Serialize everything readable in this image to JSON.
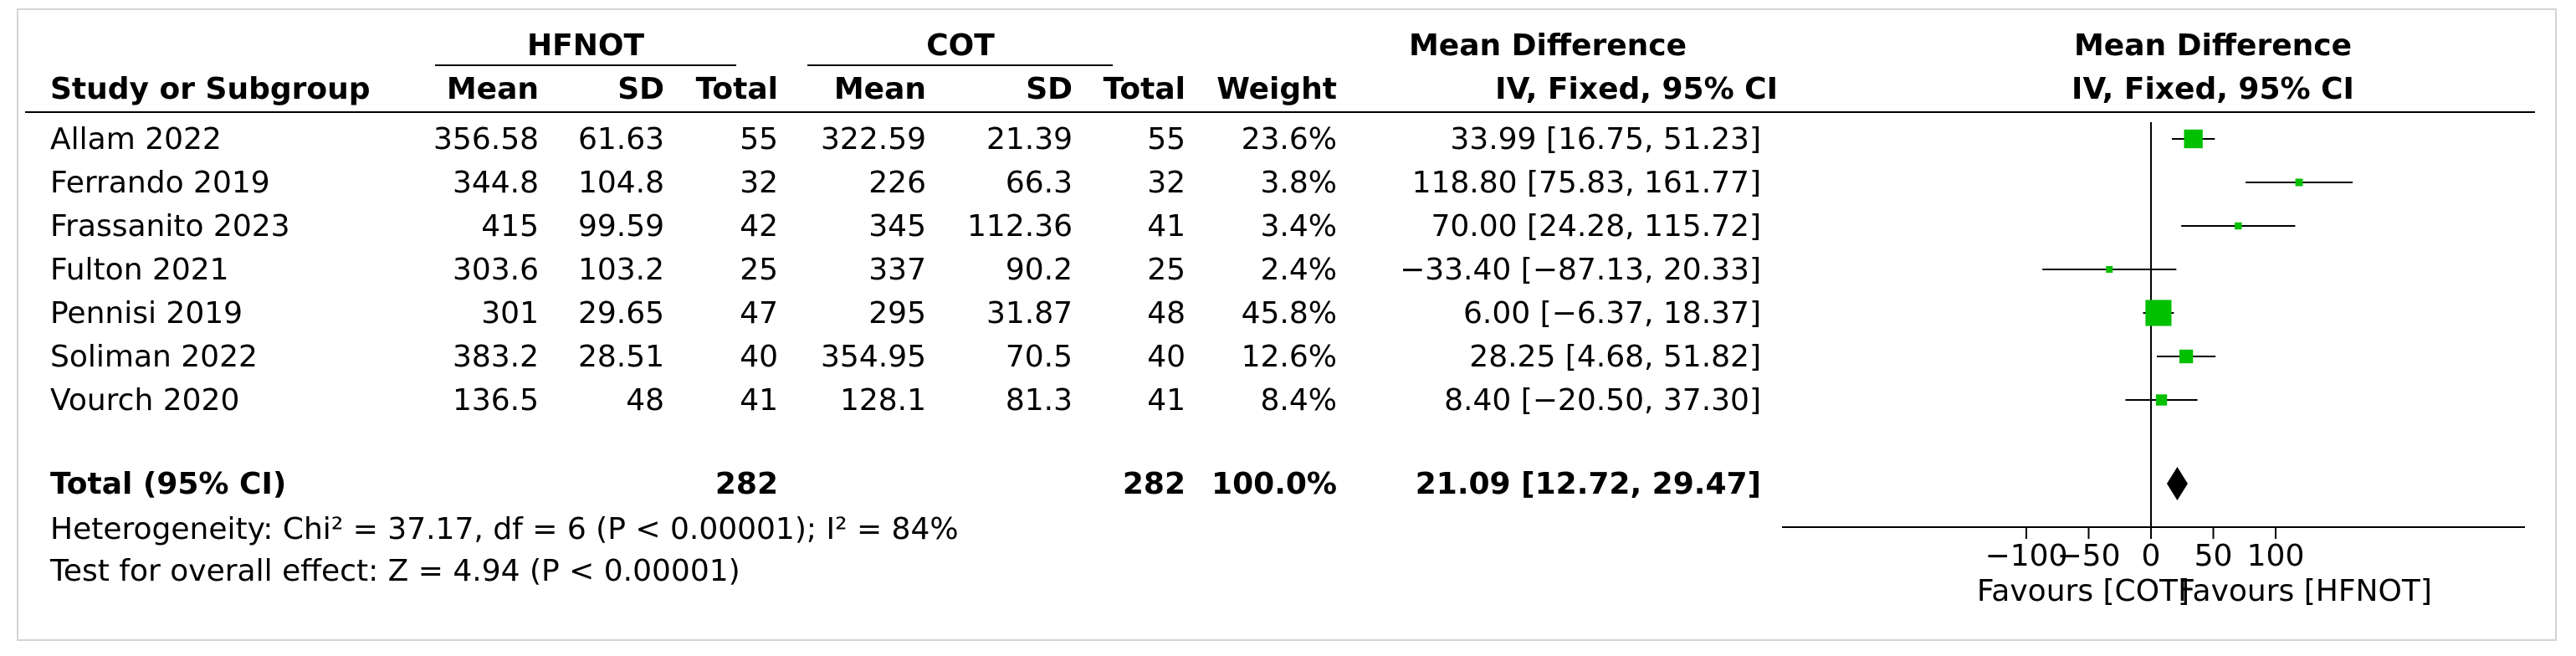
{
  "header": {
    "group1": "HFNOT",
    "group2": "COT",
    "effect_title": "Mean Difference",
    "effect_subtitle": "IV, Fixed, 95% CI",
    "plot_title": "Mean Difference",
    "plot_subtitle": "IV, Fixed, 95% CI",
    "study_col": "Study or Subgroup",
    "mean": "Mean",
    "sd": "SD",
    "total": "Total",
    "weight": "Weight"
  },
  "total_row": {
    "label": "Total (95% CI)",
    "total1": "282",
    "total2": "282",
    "weight": "100.0%",
    "ci_text": "21.09 [12.72, 29.47]"
  },
  "footer": {
    "heterogeneity": "Heterogeneity: Chi² = 37.17, df = 6 (P < 0.00001); I² = 84%",
    "overall_effect": "Test for overall effect: Z = 4.94 (P < 0.00001)"
  },
  "colors": {
    "marker": "#00c000",
    "diamond": "#000000",
    "line": "#000000"
  },
  "chart_data": {
    "type": "forest",
    "x_ticks": [
      -100,
      -50,
      0,
      50,
      100
    ],
    "xlim": [
      -150,
      150
    ],
    "favours_left": "Favours [COT]",
    "favours_right": "Favours [HFNOT]",
    "studies": [
      {
        "name": "Allam 2022",
        "mean1": "356.58",
        "sd1": "61.63",
        "n1": "55",
        "mean2": "322.59",
        "sd2": "21.39",
        "n2": "55",
        "weight_text": "23.6%",
        "ci_text": "33.99 [16.75, 51.23]",
        "md": 33.99,
        "lo": 16.75,
        "hi": 51.23,
        "weight": 23.6
      },
      {
        "name": "Ferrando 2019",
        "mean1": "344.8",
        "sd1": "104.8",
        "n1": "32",
        "mean2": "226",
        "sd2": "66.3",
        "n2": "32",
        "weight_text": "3.8%",
        "ci_text": "118.80 [75.83, 161.77]",
        "md": 118.8,
        "lo": 75.83,
        "hi": 161.77,
        "weight": 3.8
      },
      {
        "name": "Frassanito 2023",
        "mean1": "415",
        "sd1": "99.59",
        "n1": "42",
        "mean2": "345",
        "sd2": "112.36",
        "n2": "41",
        "weight_text": "3.4%",
        "ci_text": "70.00 [24.28, 115.72]",
        "md": 70.0,
        "lo": 24.28,
        "hi": 115.72,
        "weight": 3.4
      },
      {
        "name": "Fulton 2021",
        "mean1": "303.6",
        "sd1": "103.2",
        "n1": "25",
        "mean2": "337",
        "sd2": "90.2",
        "n2": "25",
        "weight_text": "2.4%",
        "ci_text": "−33.40 [−87.13, 20.33]",
        "md": -33.4,
        "lo": -87.13,
        "hi": 20.33,
        "weight": 2.4
      },
      {
        "name": "Pennisi 2019",
        "mean1": "301",
        "sd1": "29.65",
        "n1": "47",
        "mean2": "295",
        "sd2": "31.87",
        "n2": "48",
        "weight_text": "45.8%",
        "ci_text": "6.00 [−6.37, 18.37]",
        "md": 6.0,
        "lo": -6.37,
        "hi": 18.37,
        "weight": 45.8
      },
      {
        "name": "Soliman 2022",
        "mean1": "383.2",
        "sd1": "28.51",
        "n1": "40",
        "mean2": "354.95",
        "sd2": "70.5",
        "n2": "40",
        "weight_text": "12.6%",
        "ci_text": "28.25 [4.68, 51.82]",
        "md": 28.25,
        "lo": 4.68,
        "hi": 51.82,
        "weight": 12.6
      },
      {
        "name": "Vourch 2020",
        "mean1": "136.5",
        "sd1": "48",
        "n1": "41",
        "mean2": "128.1",
        "sd2": "81.3",
        "n2": "41",
        "weight_text": "8.4%",
        "ci_text": "8.40 [−20.50, 37.30]",
        "md": 8.4,
        "lo": -20.5,
        "hi": 37.3,
        "weight": 8.4
      }
    ],
    "pooled": {
      "md": 21.09,
      "lo": 12.72,
      "hi": 29.47
    }
  }
}
